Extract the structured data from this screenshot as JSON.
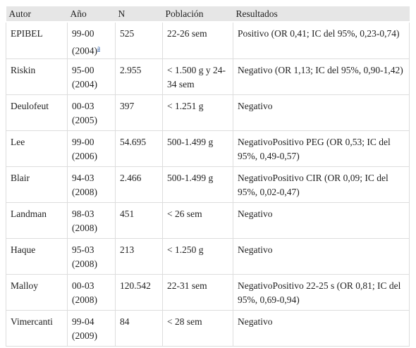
{
  "table": {
    "headers": [
      "Autor",
      "Año",
      "N",
      "Población",
      "Resultados"
    ],
    "footnote_mark": "a",
    "rows": [
      [
        "EPIBEL",
        "99-00 (2004)",
        "525",
        "22-26 sem",
        "Positivo (OR 0,41; IC del 95%, 0,23-0,74)"
      ],
      [
        "Riskin",
        "95-00 (2004)",
        "2.955",
        "< 1.500 g y 24-34 sem",
        "Negativo (OR 1,13; IC del 95%, 0,90-1,42)"
      ],
      [
        "Deulofeut",
        "00-03 (2005)",
        "397",
        "< 1.251 g",
        "Negativo"
      ],
      [
        "Lee",
        "99-00 (2006)",
        "54.695",
        "500-1.499 g",
        "NegativoPositivo PEG (OR 0,53; IC del 95%, 0,49-0,57)"
      ],
      [
        "Blair",
        "94-03 (2008)",
        "2.466",
        "500-1.499 g",
        "NegativoPositivo CIR (OR 0,09; IC del 95%, 0,02-0,47)"
      ],
      [
        "Landman",
        "98-03 (2008)",
        "451",
        "< 26 sem",
        "Negativo"
      ],
      [
        "Haque",
        "95-03 (2008)",
        "213",
        "< 1.250 g",
        "Negativo"
      ],
      [
        "Malloy",
        "00-03 (2008)",
        "120.542",
        "22-31 sem",
        "NegativoPositivo 22-25 s (OR 0,81; IC del 95%, 0,69-0,94)"
      ],
      [
        "Vimercanti",
        "99-04 (2009)",
        "84",
        "< 28 sem",
        "Negativo"
      ]
    ]
  }
}
